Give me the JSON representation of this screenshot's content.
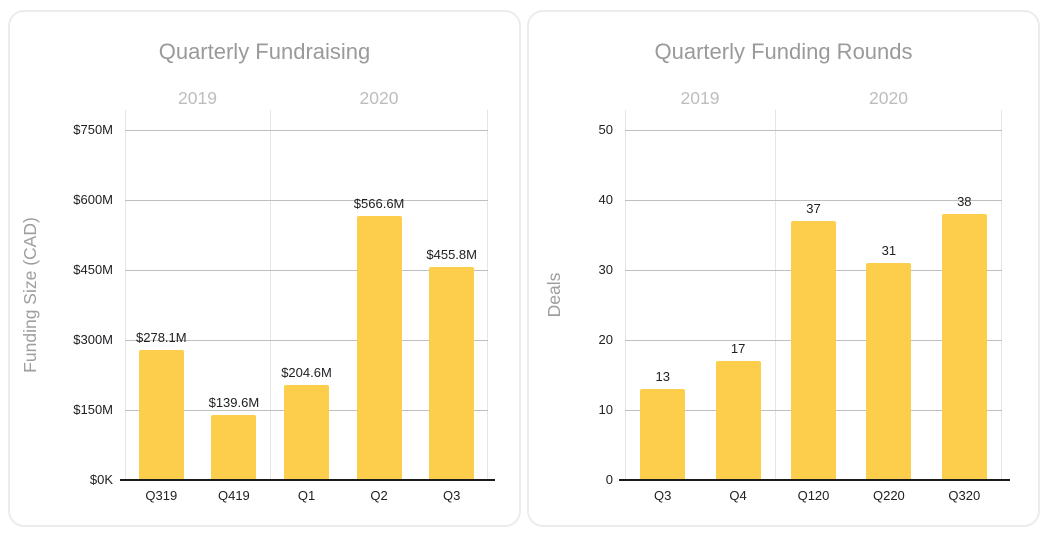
{
  "chart_data": [
    {
      "type": "bar",
      "title": "Quarterly Fundraising",
      "xlabel": "",
      "ylabel": "Funding Size (CAD)",
      "categories": [
        "Q319",
        "Q419",
        "Q1",
        "Q2",
        "Q3"
      ],
      "values": [
        278.1,
        139.6,
        204.6,
        566.6,
        455.8
      ],
      "value_labels": [
        "$278.1M",
        "$139.6M",
        "$204.6M",
        "$566.6M",
        "$455.8M"
      ],
      "ylim": [
        0,
        750
      ],
      "y_ticks": [
        {
          "value": 0,
          "label": "$0K"
        },
        {
          "value": 150,
          "label": "$150M"
        },
        {
          "value": 300,
          "label": "$300M"
        },
        {
          "value": 450,
          "label": "$450M"
        },
        {
          "value": 600,
          "label": "$600M"
        },
        {
          "value": 750,
          "label": "$750M"
        }
      ],
      "year_groups": [
        {
          "label": "2019",
          "categories_count": 2
        },
        {
          "label": "2020",
          "categories_count": 3
        }
      ],
      "grid": true,
      "legend": "none",
      "bar_color": "#FDCE4B"
    },
    {
      "type": "bar",
      "title": "Quarterly Funding Rounds",
      "xlabel": "",
      "ylabel": "Deals",
      "categories": [
        "Q3",
        "Q4",
        "Q120",
        "Q220",
        "Q320"
      ],
      "values": [
        13,
        17,
        37,
        31,
        38
      ],
      "value_labels": [
        "13",
        "17",
        "37",
        "31",
        "38"
      ],
      "ylim": [
        0,
        50
      ],
      "y_ticks": [
        {
          "value": 0,
          "label": "0"
        },
        {
          "value": 10,
          "label": "10"
        },
        {
          "value": 20,
          "label": "20"
        },
        {
          "value": 30,
          "label": "30"
        },
        {
          "value": 40,
          "label": "40"
        },
        {
          "value": 50,
          "label": "50"
        }
      ],
      "year_groups": [
        {
          "label": "2019",
          "categories_count": 2
        },
        {
          "label": "2020",
          "categories_count": 3
        }
      ],
      "grid": true,
      "legend": "none",
      "bar_color": "#FDCE4B"
    }
  ],
  "styles": {
    "bar_color": "#FDCE4B",
    "gridline_color": "#bfbfbf",
    "boundary_line_color": "#e5e5e5",
    "baseline_color": "#1a1a1a",
    "title_color": "#9a9a9a",
    "year_label_color": "#bdbdbd",
    "tick_label_color": "#202124",
    "card_border_color": "#ececec"
  }
}
